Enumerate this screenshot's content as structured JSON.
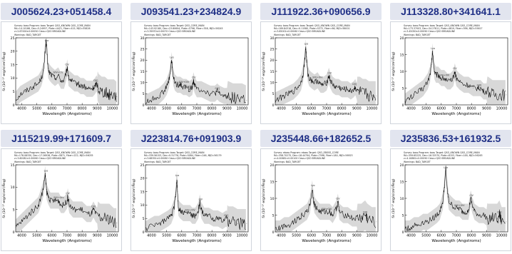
{
  "page": {
    "background": "#ffffff",
    "title_bg": "#e2e5ef",
    "title_color": "#1f2f86"
  },
  "spectra": [
    {
      "id": "J005624.23+051458.4",
      "header_lines": [
        "Survey: boss Program: boss Target: QSO_KNOWN QSO_CORE_MAIN",
        "RA=14.10186, Dec=5.24957, Plate=4421, Fiber=415, MJD=55826",
        "z=2.67000±0.00050 Class=QSO BROADLINE",
        "Warnings: BAD_TARGET"
      ],
      "line_labels": [
        {
          "text": "Lyα",
          "x": 5650
        },
        {
          "text": "SiIV+OIV",
          "x": 6420
        },
        {
          "text": "CIV",
          "x": 7000
        },
        {
          "text": "CIII]",
          "x": 8900
        }
      ],
      "chart_data": {
        "type": "line",
        "x": [
          3600,
          3900,
          4200,
          4500,
          4800,
          5100,
          5300,
          5450,
          5550,
          5620,
          5680,
          5750,
          5850,
          6000,
          6200,
          6420,
          6600,
          6800,
          6950,
          7020,
          7100,
          7300,
          7500,
          7700,
          7900,
          8100,
          8300,
          8500,
          8700,
          8850,
          8950,
          9100,
          9300,
          9500,
          9700,
          9900,
          10100,
          10300
        ],
        "y": [
          2,
          4,
          5,
          6,
          7,
          8,
          10,
          13,
          20,
          24,
          19,
          13,
          12,
          11,
          10,
          11,
          9,
          9,
          12,
          14,
          10,
          9,
          8,
          8,
          7,
          7,
          6,
          6,
          6,
          7,
          8,
          6,
          5,
          5,
          4,
          4,
          4,
          3
        ],
        "xlabel": "Wavelength (Angstroms)",
        "ylabel": "fλ (10⁻¹⁷ erg/s/cm²/Ång)",
        "xlim": [
          3600,
          10400
        ],
        "ylim": [
          0,
          25
        ],
        "xticks": [
          4000,
          5000,
          6000,
          7000,
          8000,
          9000,
          10000
        ],
        "yticks": [
          0,
          5,
          10,
          15,
          20,
          25
        ]
      }
    },
    {
      "id": "J093541.23+234824.9",
      "header_lines": [
        "Survey: boss Program: boss Target: QSO_CORE_MAIN",
        "RA=143.92180, Dec=23.80694, Plate=5796, Fiber=358, MJD=56245",
        "z=3.39970±0.00070 Class=QSO BROADLINE",
        "Warnings: BAD_TARGET"
      ],
      "line_labels": [
        {
          "text": "Lyα",
          "x": 5350
        },
        {
          "text": "SiIV+OIV",
          "x": 6150
        },
        {
          "text": "CIV",
          "x": 6800
        },
        {
          "text": "CIII]",
          "x": 8350
        }
      ],
      "chart_data": {
        "type": "line",
        "x": [
          3600,
          3900,
          4200,
          4500,
          4800,
          5000,
          5150,
          5250,
          5330,
          5380,
          5450,
          5550,
          5700,
          5900,
          6100,
          6300,
          6500,
          6700,
          6780,
          6850,
          7000,
          7300,
          7600,
          7900,
          8200,
          8350,
          8500,
          8800,
          9100,
          9400,
          9700,
          10000,
          10300
        ],
        "y": [
          1,
          2,
          3,
          4,
          6,
          8,
          11,
          15,
          20,
          17,
          12,
          10,
          9,
          9,
          8,
          8,
          7,
          8,
          11,
          9,
          7,
          7,
          6,
          5,
          5,
          6,
          5,
          4,
          4,
          3,
          3,
          3,
          2
        ],
        "xlabel": "Wavelength (Angstroms)",
        "ylabel": "fλ (10⁻¹⁷ erg/s/cm²/Ång)",
        "xlim": [
          3600,
          10400
        ],
        "ylim": [
          0,
          30
        ],
        "xticks": [
          4000,
          5000,
          6000,
          7000,
          8000,
          9000,
          10000
        ],
        "yticks": [
          0,
          5,
          10,
          15,
          20,
          25,
          30
        ]
      }
    },
    {
      "id": "J111922.36+090656.9",
      "header_lines": [
        "Survey: boss Program: boss Target: QSO_KNOWN QSO_CORE_MAIN",
        "RA=169.84318, Dec=9.11580, Plate=5372, Fiber=66, MJD=56001",
        "z=3.65001±0.00060 Class=QSO BROADLINE",
        "Warnings: BAD_TARGET"
      ],
      "line_labels": [
        {
          "text": "Lyα",
          "x": 5650
        },
        {
          "text": "SiIV+OIV",
          "x": 6400
        },
        {
          "text": "CIV",
          "x": 7200
        },
        {
          "text": "CIII]",
          "x": 8850
        }
      ],
      "chart_data": {
        "type": "line",
        "x": [
          3600,
          3900,
          4200,
          4500,
          4800,
          5100,
          5300,
          5450,
          5550,
          5620,
          5680,
          5750,
          5850,
          6000,
          6200,
          6400,
          6600,
          6800,
          7000,
          7150,
          7250,
          7400,
          7600,
          7800,
          8000,
          8200,
          8400,
          8600,
          8800,
          8900,
          9000,
          9200,
          9400,
          9600,
          9800,
          10000,
          10300
        ],
        "y": [
          2,
          3,
          4,
          5,
          6,
          8,
          10,
          14,
          20,
          26,
          20,
          14,
          12,
          11,
          10,
          11,
          9,
          9,
          10,
          13,
          11,
          9,
          8,
          8,
          7,
          7,
          7,
          6,
          7,
          8,
          6,
          6,
          5,
          5,
          4,
          4,
          4
        ],
        "xlabel": "Wavelength (Angstroms)",
        "ylabel": "fλ (10⁻¹⁷ erg/s/cm²/Ång)",
        "xlim": [
          3600,
          10400
        ],
        "ylim": [
          0,
          30
        ],
        "xticks": [
          4000,
          5000,
          6000,
          7000,
          8000,
          9000,
          10000
        ],
        "yticks": [
          0,
          5,
          10,
          15,
          20,
          25,
          30
        ]
      }
    },
    {
      "id": "J113328.80+341641.1",
      "header_lines": [
        "Survey: boss Program: boss Target: QSO_KNOWN QSO_CORE_MAIN",
        "RA=173.37003, Dec=34.27811, Plate=4619, Fiber=396, MJD=55617",
        "z=3.45050±0.00090 Class=QSO BROADLINE",
        "Warnings: BAD_TARGET"
      ],
      "line_labels": [
        {
          "text": "Lyα",
          "x": 5450
        },
        {
          "text": "SiIV+OIV",
          "x": 6200
        },
        {
          "text": "CIV",
          "x": 6900
        },
        {
          "text": "CIII]",
          "x": 8500
        }
      ],
      "chart_data": {
        "type": "line",
        "x": [
          3600,
          3900,
          4200,
          4500,
          4800,
          5100,
          5250,
          5350,
          5420,
          5480,
          5550,
          5650,
          5800,
          6000,
          6200,
          6400,
          6600,
          6800,
          6900,
          7000,
          7200,
          7500,
          7800,
          8100,
          8400,
          8600,
          8800,
          9100,
          9400,
          9700,
          10000,
          10300
        ],
        "y": [
          1,
          2,
          3,
          4,
          5,
          7,
          9,
          12,
          16,
          13,
          10,
          9,
          9,
          8,
          8,
          7,
          7,
          8,
          10,
          8,
          7,
          6,
          6,
          5,
          5,
          5,
          4,
          4,
          3,
          3,
          3,
          3
        ],
        "xlabel": "Wavelength (Angstroms)",
        "ylabel": "fλ (10⁻¹⁷ erg/s/cm²/Ång)",
        "xlim": [
          3600,
          10400
        ],
        "ylim": [
          0,
          20
        ],
        "xticks": [
          4000,
          5000,
          6000,
          7000,
          8000,
          9000,
          10000
        ],
        "yticks": [
          0,
          5,
          10,
          15,
          20
        ]
      }
    },
    {
      "id": "J115219.99+171609.7",
      "header_lines": [
        "Survey: boss Program: boss Target: QSO_KNOWN QSO_CORE_MAIN",
        "RA=178.08330, Dec=17.26936, Plate=5871, Fiber=222, MJD=56035",
        "z=3.60081±0.00060 Class=QSO BROADLINE",
        "Warnings: BAD_TARGET"
      ],
      "line_labels": [
        {
          "text": "Lyα",
          "x": 5600
        },
        {
          "text": "SiIV+OIV",
          "x": 6450
        },
        {
          "text": "CIV",
          "x": 7050
        },
        {
          "text": "CIII]",
          "x": 8750
        }
      ],
      "chart_data": {
        "type": "line",
        "x": [
          3600,
          3900,
          4200,
          4500,
          4800,
          5100,
          5300,
          5450,
          5550,
          5600,
          5650,
          5750,
          5900,
          6100,
          6300,
          6450,
          6600,
          6800,
          7000,
          7050,
          7150,
          7400,
          7700,
          8000,
          8300,
          8600,
          8750,
          8900,
          9200,
          9500,
          9800,
          10100,
          10300
        ],
        "y": [
          1,
          2,
          3,
          4,
          5,
          6,
          8,
          10,
          13,
          11,
          9,
          8,
          7,
          7,
          7,
          7,
          6,
          6,
          7,
          8,
          6,
          5,
          5,
          5,
          4,
          4,
          5,
          4,
          3,
          3,
          3,
          2,
          2
        ],
        "xlabel": "Wavelength (Angstroms)",
        "ylabel": "fλ (10⁻¹⁷ erg/s/cm²/Ång)",
        "xlim": [
          3600,
          10400
        ],
        "ylim": [
          0,
          15
        ],
        "xticks": [
          4000,
          5000,
          6000,
          7000,
          8000,
          9000,
          10000
        ],
        "yticks": [
          0,
          5,
          10,
          15
        ]
      }
    },
    {
      "id": "J223814.76+091903.9",
      "header_lines": [
        "Survey: boss Program: boss Target: QSO_CORE_MAIN",
        "RA=339.56153, Dec=9.31776, Plate=5064, Fiber=246, MJD=56179",
        "z=3.68391±0.00080 Class=QSO BROADLINE",
        "Warnings: BAD_TARGET"
      ],
      "line_labels": [
        {
          "text": "Lyα",
          "x": 5700
        },
        {
          "text": "SiIV+OIV",
          "x": 6550
        },
        {
          "text": "CIV",
          "x": 7250
        },
        {
          "text": "CIII]",
          "x": 8950
        }
      ],
      "chart_data": {
        "type": "line",
        "x": [
          3600,
          3900,
          4200,
          4500,
          4800,
          5100,
          5300,
          5500,
          5600,
          5680,
          5720,
          5780,
          5900,
          6100,
          6300,
          6550,
          6700,
          6900,
          7100,
          7200,
          7300,
          7500,
          7800,
          8100,
          8400,
          8700,
          8950,
          9100,
          9400,
          9700,
          10000,
          10300
        ],
        "y": [
          1,
          2,
          3,
          3,
          4,
          5,
          6,
          9,
          14,
          20,
          15,
          9,
          8,
          7,
          7,
          7,
          6,
          6,
          8,
          11,
          8,
          6,
          6,
          5,
          5,
          4,
          5,
          4,
          4,
          3,
          3,
          3
        ],
        "xlabel": "Wavelength (Angstroms)",
        "ylabel": "fλ (10⁻¹⁷ erg/s/cm²/Ång)",
        "xlim": [
          3600,
          10400
        ],
        "ylim": [
          0,
          25
        ],
        "xticks": [
          4000,
          5000,
          6000,
          7000,
          8000,
          9000,
          10000
        ],
        "yticks": [
          0,
          5,
          10,
          15,
          20,
          25
        ]
      }
    },
    {
      "id": "J235448.66+182652.5",
      "header_lines": [
        "Survey: eboss Program: eboss Target: QSO_EBOSS_CORE",
        "RA=358.70275, Dec=18.44794, Plate=7596, Fiber=180, MJD=56923",
        "z=4.00681±0.00100 Class=QSO BROADLINE",
        "Warnings: BAD_TARGET"
      ],
      "line_labels": [
        {
          "text": "Lyα",
          "x": 6100
        },
        {
          "text": "SiIV+OIV",
          "x": 7000
        },
        {
          "text": "CIV",
          "x": 7750
        },
        {
          "text": "CIII]",
          "x": 9550
        }
      ],
      "chart_data": {
        "type": "line",
        "x": [
          3600,
          3900,
          4200,
          4500,
          4800,
          5100,
          5400,
          5700,
          5900,
          6050,
          6120,
          6200,
          6350,
          6550,
          6800,
          7000,
          7200,
          7400,
          7650,
          7750,
          7850,
          8100,
          8400,
          8700,
          9000,
          9300,
          9550,
          9700,
          10000,
          10300
        ],
        "y": [
          1,
          1,
          2,
          2,
          3,
          4,
          5,
          6,
          8,
          13,
          10,
          8,
          7,
          6,
          6,
          6,
          6,
          5,
          7,
          9,
          6,
          5,
          5,
          4,
          4,
          4,
          5,
          4,
          3,
          3
        ],
        "xlabel": "Wavelength (Angstroms)",
        "ylabel": "fλ (10⁻¹⁷ erg/s/cm²/Ång)",
        "xlim": [
          3600,
          10400
        ],
        "ylim": [
          0,
          20
        ],
        "xticks": [
          4000,
          5000,
          6000,
          7000,
          8000,
          9000,
          10000
        ],
        "yticks": [
          0,
          5,
          10,
          15,
          20
        ]
      }
    },
    {
      "id": "J235836.53+161932.5",
      "header_lines": [
        "Survey: boss Program: boss Target: QSO_KNOWN QSO_CORE_MAIN",
        "RA=359.65225, Dec=16.32570, Plate=6153, Fiber=148, MJD=56263",
        "z=4.16861±0.00090 Class=QSO BROADLINE",
        "Warnings: BAD_TARGET"
      ],
      "line_labels": [
        {
          "text": "Lyα",
          "x": 6300
        },
        {
          "text": "SiIV+OIV",
          "x": 7200
        },
        {
          "text": "CIV",
          "x": 8000
        },
        {
          "text": "CIII]",
          "x": 9850
        }
      ],
      "chart_data": {
        "type": "line",
        "x": [
          3600,
          3900,
          4200,
          4500,
          4800,
          5100,
          5400,
          5700,
          5900,
          6100,
          6220,
          6300,
          6380,
          6500,
          6700,
          6950,
          7200,
          7400,
          7600,
          7800,
          7950,
          8050,
          8200,
          8500,
          8800,
          9100,
          9400,
          9700,
          9850,
          10000,
          10300
        ],
        "y": [
          1,
          1,
          2,
          2,
          3,
          3,
          4,
          5,
          6,
          9,
          14,
          19,
          13,
          9,
          8,
          7,
          7,
          6,
          6,
          6,
          10,
          8,
          6,
          5,
          5,
          4,
          4,
          4,
          5,
          3,
          3
        ],
        "xlabel": "Wavelength (Angstroms)",
        "ylabel": "fλ (10⁻¹⁷ erg/s/cm²/Ång)",
        "xlim": [
          3600,
          10400
        ],
        "ylim": [
          0,
          20
        ],
        "xticks": [
          4000,
          5000,
          6000,
          7000,
          8000,
          9000,
          10000
        ],
        "yticks": [
          0,
          5,
          10,
          15,
          20
        ]
      }
    }
  ]
}
